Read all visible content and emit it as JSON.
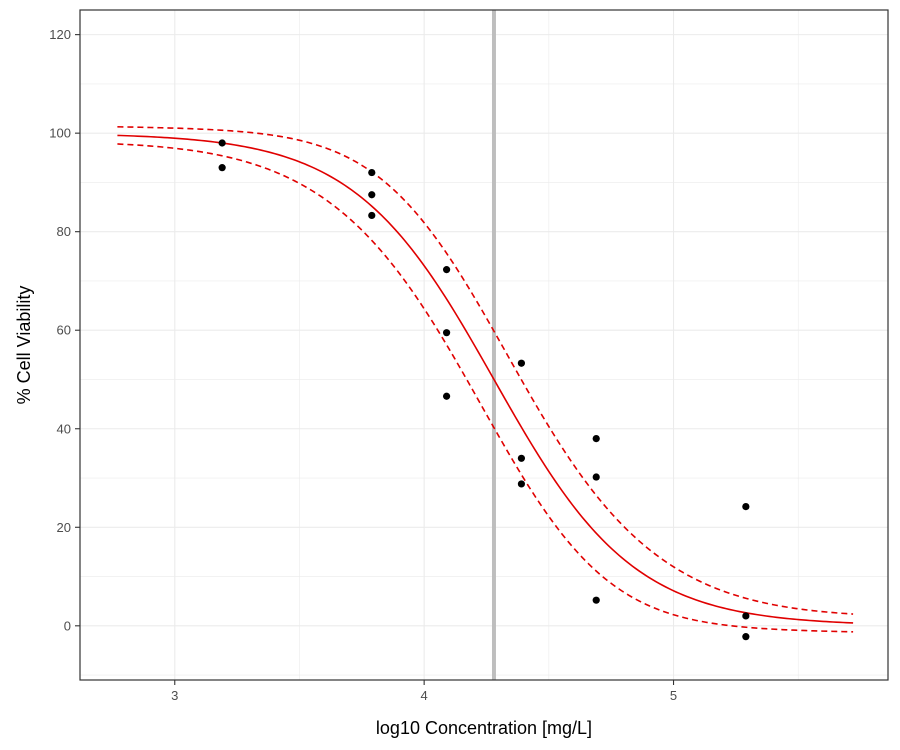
{
  "chart_data": {
    "type": "scatter",
    "title": "",
    "xlabel": "log10 Concentration [mg/L]",
    "ylabel": "% Cell Viability",
    "xlim": [
      2.62,
      5.86
    ],
    "ylim": [
      -11,
      125
    ],
    "x_ticks": [
      3,
      4,
      5
    ],
    "x_tick_labels": [
      "3",
      "4",
      "5"
    ],
    "y_ticks": [
      0,
      20,
      40,
      60,
      80,
      100,
      120
    ],
    "y_tick_labels": [
      "0",
      "20",
      "40",
      "60",
      "80",
      "100",
      "120"
    ],
    "grid": true,
    "legend": "none",
    "points": {
      "x": [
        3.19,
        3.19,
        3.79,
        3.79,
        3.79,
        4.09,
        4.09,
        4.09,
        4.39,
        4.39,
        4.39,
        4.69,
        4.69,
        4.69,
        5.29,
        5.29,
        5.29
      ],
      "y": [
        98,
        93,
        92,
        87.5,
        83.3,
        72.3,
        59.5,
        46.6,
        53.3,
        34,
        28.8,
        38,
        30.2,
        5.2,
        24.2,
        2,
        -2.2
      ]
    },
    "fit": {
      "model": "4-parameter log-logistic",
      "top": 100,
      "bottom": 0,
      "log_ec50": 4.28,
      "hill": -1.55,
      "x_range": [
        2.77,
        5.72
      ],
      "ci_half_width_center": 8.2,
      "ci_max_deviation": 4.7
    },
    "vline_x": 4.28,
    "colors": {
      "fit": "#e00000",
      "points": "#000000",
      "vline": "#bebebe",
      "grid": "#ebebeb",
      "panel_border": "#333333"
    }
  }
}
